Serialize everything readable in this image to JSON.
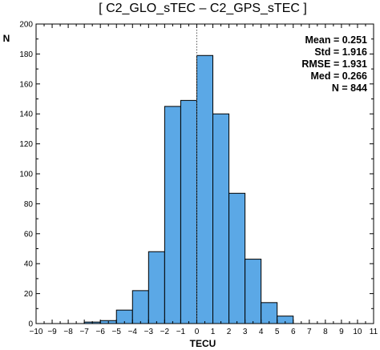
{
  "chart_data": {
    "type": "bar",
    "title": "[ C2_GLO_sTEC – C2_GPS_sTEC ]",
    "xlabel": "TECU",
    "ylabel": "N",
    "xlim": [
      -10,
      11
    ],
    "ylim": [
      0,
      200
    ],
    "x_ticks": [
      -10,
      -9,
      -8,
      -7,
      -6,
      -5,
      -4,
      -3,
      -2,
      -1,
      0,
      1,
      2,
      3,
      4,
      5,
      6,
      7,
      8,
      9,
      10,
      11
    ],
    "y_ticks": [
      0,
      20,
      40,
      60,
      80,
      100,
      120,
      140,
      160,
      180,
      200
    ],
    "bin_edges": [
      -7,
      -6,
      -5,
      -4,
      -3,
      -2,
      -1,
      0,
      1,
      2,
      3,
      4,
      5,
      6
    ],
    "values": [
      1,
      2,
      9,
      22,
      48,
      145,
      149,
      179,
      140,
      87,
      43,
      14,
      5
    ],
    "bar_color": "#5ba8e6",
    "zero_line": "dotted",
    "stats": [
      "Mean = 0.251",
      "Std = 1.916",
      "RMSE = 1.931",
      "Med = 0.266",
      "N = 844"
    ]
  }
}
